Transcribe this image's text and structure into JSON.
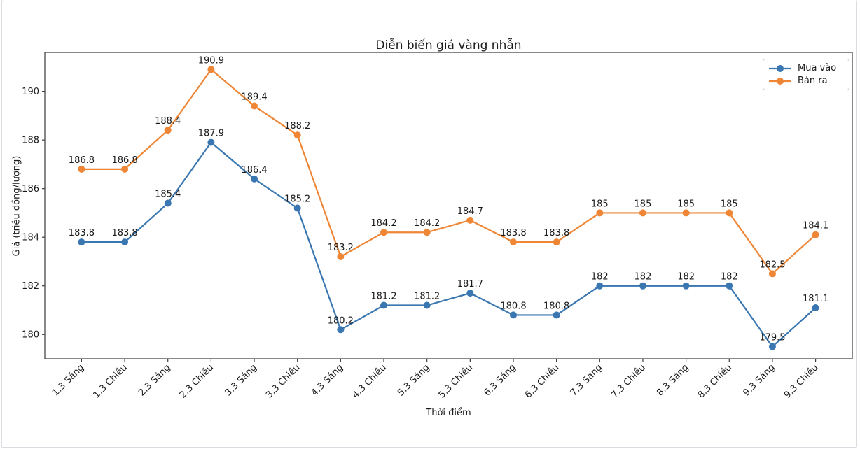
{
  "frame": {
    "border_color": "#d9dce0",
    "background": "#ffffff"
  },
  "chart_data": {
    "type": "line",
    "title": "Diễn biến giá vàng nhẫn",
    "xlabel": "Thời điểm",
    "ylabel": "Giá (triệu đồng/lượng)",
    "categories": [
      "1.3 Sáng",
      "1.3 Chiều",
      "2.3 Sáng",
      "2.3 Chiều",
      "3.3 Sáng",
      "3.3 Chiều",
      "4.3 Sáng",
      "4.3 Chiều",
      "5.3 Sáng",
      "5.3 Chiều",
      "6.3 Sáng",
      "6.3 Chiều",
      "7.3 Sáng",
      "7.3 Chiều",
      "8.3 Sáng",
      "8.3 Chiều",
      "9.3 Sáng",
      "9.3 Chiều"
    ],
    "series": [
      {
        "name": "Mua vào",
        "color": "#3a76b0",
        "values": [
          183.8,
          183.8,
          185.4,
          187.9,
          186.4,
          185.2,
          180.2,
          181.2,
          181.2,
          181.7,
          180.8,
          180.8,
          182,
          182,
          182,
          182,
          179.5,
          181.1
        ]
      },
      {
        "name": "Bán ra",
        "color": "#ee8636",
        "values": [
          186.8,
          186.8,
          188.4,
          190.9,
          189.4,
          188.2,
          183.2,
          184.2,
          184.2,
          184.7,
          183.8,
          183.8,
          185,
          185,
          185,
          185,
          182.5,
          184.1
        ]
      }
    ],
    "ylim": [
      179.0,
      191.6
    ],
    "yticks": [
      180,
      182,
      184,
      186,
      188,
      190
    ],
    "grid": false,
    "legend_position": "upper right",
    "data_labels": true,
    "colors": {
      "spine": "#3a3a3a",
      "text": "#1a1a1a",
      "legend_border": "#cccccc"
    }
  }
}
